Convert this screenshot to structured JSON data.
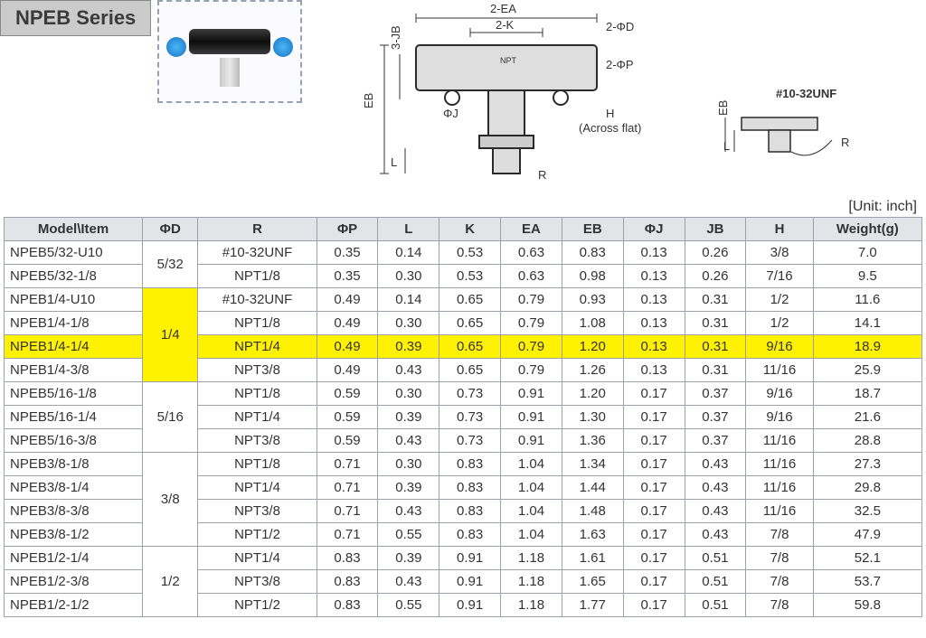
{
  "series_title": "NPEB Series",
  "unit_label": "[Unit: inch]",
  "diagram": {
    "labels": {
      "ea": "2-EA",
      "k": "2-K",
      "phid": "2-ΦD",
      "php": "2-ΦP",
      "jb": "3-JB",
      "eb": "EB",
      "phij": "ΦJ",
      "h": "H",
      "across": "(Across flat)",
      "l": "L",
      "r": "R",
      "unf": "#10-32UNF",
      "eb2": "EB",
      "l2": "L",
      "r2": "R",
      "npt": "NPT"
    }
  },
  "table": {
    "headers": [
      "Model\\Item",
      "ΦD",
      "R",
      "ΦP",
      "L",
      "K",
      "EA",
      "EB",
      "ΦJ",
      "JB",
      "H",
      "Weight(g)"
    ],
    "groups": [
      {
        "phid": "5/32",
        "rows": [
          {
            "model": "NPEB5/32-U10",
            "r": "#10-32UNF",
            "php": "0.35",
            "l": "0.14",
            "k": "0.53",
            "ea": "0.63",
            "eb": "0.83",
            "phij": "0.13",
            "jb": "0.26",
            "h": "3/8",
            "w": "7.0",
            "hl": false
          },
          {
            "model": "NPEB5/32-1/8",
            "r": "NPT1/8",
            "php": "0.35",
            "l": "0.30",
            "k": "0.53",
            "ea": "0.63",
            "eb": "0.98",
            "phij": "0.13",
            "jb": "0.26",
            "h": "7/16",
            "w": "9.5",
            "hl": false
          }
        ]
      },
      {
        "phid": "1/4",
        "phid_hl": true,
        "rows": [
          {
            "model": "NPEB1/4-U10",
            "r": "#10-32UNF",
            "php": "0.49",
            "l": "0.14",
            "k": "0.65",
            "ea": "0.79",
            "eb": "0.93",
            "phij": "0.13",
            "jb": "0.31",
            "h": "1/2",
            "w": "11.6",
            "hl": false
          },
          {
            "model": "NPEB1/4-1/8",
            "r": "NPT1/8",
            "php": "0.49",
            "l": "0.30",
            "k": "0.65",
            "ea": "0.79",
            "eb": "1.08",
            "phij": "0.13",
            "jb": "0.31",
            "h": "1/2",
            "w": "14.1",
            "hl": false
          },
          {
            "model": "NPEB1/4-1/4",
            "r": "NPT1/4",
            "php": "0.49",
            "l": "0.39",
            "k": "0.65",
            "ea": "0.79",
            "eb": "1.20",
            "phij": "0.13",
            "jb": "0.31",
            "h": "9/16",
            "w": "18.9",
            "hl": true
          },
          {
            "model": "NPEB1/4-3/8",
            "r": "NPT3/8",
            "php": "0.49",
            "l": "0.43",
            "k": "0.65",
            "ea": "0.79",
            "eb": "1.26",
            "phij": "0.13",
            "jb": "0.31",
            "h": "11/16",
            "w": "25.9",
            "hl": false
          }
        ]
      },
      {
        "phid": "5/16",
        "rows": [
          {
            "model": "NPEB5/16-1/8",
            "r": "NPT1/8",
            "php": "0.59",
            "l": "0.30",
            "k": "0.73",
            "ea": "0.91",
            "eb": "1.20",
            "phij": "0.17",
            "jb": "0.37",
            "h": "9/16",
            "w": "18.7",
            "hl": false
          },
          {
            "model": "NPEB5/16-1/4",
            "r": "NPT1/4",
            "php": "0.59",
            "l": "0.39",
            "k": "0.73",
            "ea": "0.91",
            "eb": "1.30",
            "phij": "0.17",
            "jb": "0.37",
            "h": "9/16",
            "w": "21.6",
            "hl": false
          },
          {
            "model": "NPEB5/16-3/8",
            "r": "NPT3/8",
            "php": "0.59",
            "l": "0.43",
            "k": "0.73",
            "ea": "0.91",
            "eb": "1.36",
            "phij": "0.17",
            "jb": "0.37",
            "h": "11/16",
            "w": "28.8",
            "hl": false
          }
        ]
      },
      {
        "phid": "3/8",
        "rows": [
          {
            "model": "NPEB3/8-1/8",
            "r": "NPT1/8",
            "php": "0.71",
            "l": "0.30",
            "k": "0.83",
            "ea": "1.04",
            "eb": "1.34",
            "phij": "0.17",
            "jb": "0.43",
            "h": "11/16",
            "w": "27.3",
            "hl": false
          },
          {
            "model": "NPEB3/8-1/4",
            "r": "NPT1/4",
            "php": "0.71",
            "l": "0.39",
            "k": "0.83",
            "ea": "1.04",
            "eb": "1.44",
            "phij": "0.17",
            "jb": "0.43",
            "h": "11/16",
            "w": "29.8",
            "hl": false
          },
          {
            "model": "NPEB3/8-3/8",
            "r": "NPT3/8",
            "php": "0.71",
            "l": "0.43",
            "k": "0.83",
            "ea": "1.04",
            "eb": "1.48",
            "phij": "0.17",
            "jb": "0.43",
            "h": "11/16",
            "w": "32.5",
            "hl": false
          },
          {
            "model": "NPEB3/8-1/2",
            "r": "NPT1/2",
            "php": "0.71",
            "l": "0.55",
            "k": "0.83",
            "ea": "1.04",
            "eb": "1.63",
            "phij": "0.17",
            "jb": "0.43",
            "h": "7/8",
            "w": "47.9",
            "hl": false
          }
        ]
      },
      {
        "phid": "1/2",
        "rows": [
          {
            "model": "NPEB1/2-1/4",
            "r": "NPT1/4",
            "php": "0.83",
            "l": "0.39",
            "k": "0.91",
            "ea": "1.18",
            "eb": "1.61",
            "phij": "0.17",
            "jb": "0.51",
            "h": "7/8",
            "w": "52.1",
            "hl": false
          },
          {
            "model": "NPEB1/2-3/8",
            "r": "NPT3/8",
            "php": "0.83",
            "l": "0.43",
            "k": "0.91",
            "ea": "1.18",
            "eb": "1.65",
            "phij": "0.17",
            "jb": "0.51",
            "h": "7/8",
            "w": "53.7",
            "hl": false
          },
          {
            "model": "NPEB1/2-1/2",
            "r": "NPT1/2",
            "php": "0.83",
            "l": "0.55",
            "k": "0.91",
            "ea": "1.18",
            "eb": "1.77",
            "phij": "0.17",
            "jb": "0.51",
            "h": "7/8",
            "w": "59.8",
            "hl": false
          }
        ]
      }
    ]
  },
  "colors": {
    "highlight": "#fff200",
    "header_bg": "#e2e4e8",
    "border": "#9ba0a9",
    "badge_bg": "#cbcbcb"
  }
}
